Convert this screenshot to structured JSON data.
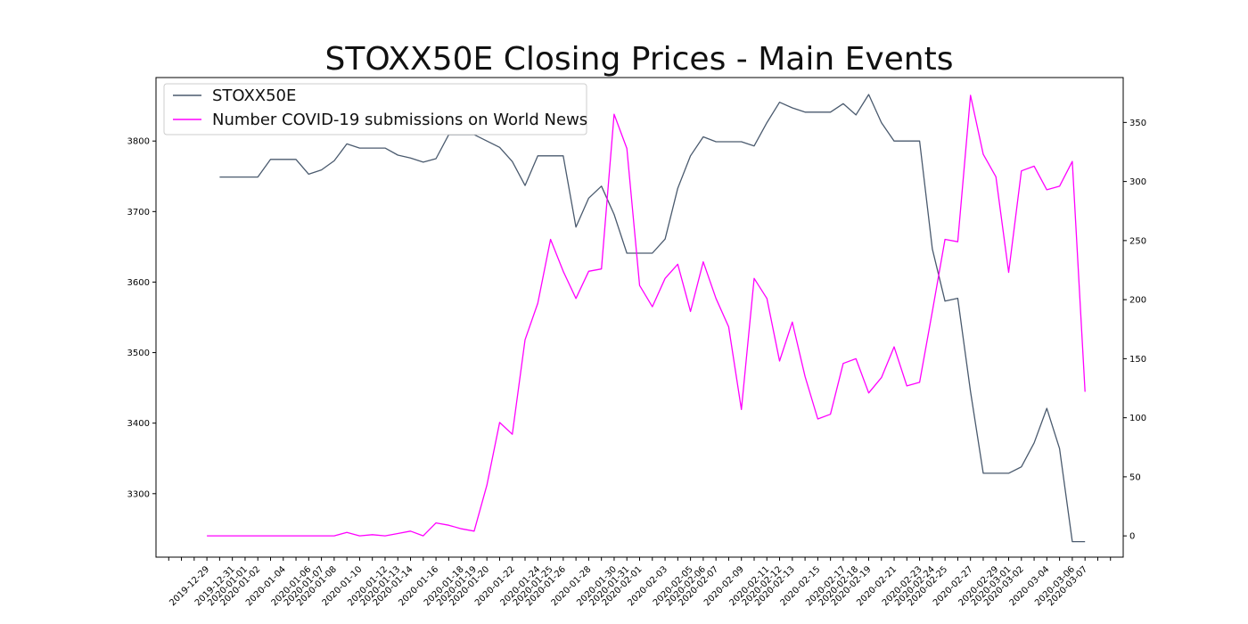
{
  "chart_data": {
    "type": "line",
    "title": "STOXX50E Closing Prices - Main Events",
    "xlabel": "",
    "ylabel": "",
    "y2label": "",
    "legend_position": "top-left",
    "grid": false,
    "x_tick_labels": [
      "2019-12-29",
      "2019-12-31",
      "2020-01-01",
      "2020-01-02",
      "2020-01-04",
      "2020-01-06",
      "2020-01-07",
      "2020-01-08",
      "2020-01-10",
      "2020-01-12",
      "2020-01-13",
      "2020-01-14",
      "2020-01-16",
      "2020-01-18",
      "2020-01-19",
      "2020-01-20",
      "2020-01-22",
      "2020-01-24",
      "2020-01-25",
      "2020-01-26",
      "2020-01-28",
      "2020-01-30",
      "2020-01-31",
      "2020-02-01",
      "2020-02-03",
      "2020-02-05",
      "2020-02-06",
      "2020-02-07",
      "2020-02-09",
      "2020-02-11",
      "2020-02-12",
      "2020-02-13",
      "2020-02-15",
      "2020-02-17",
      "2020-02-18",
      "2020-02-19",
      "2020-02-21",
      "2020-02-23",
      "2020-02-24",
      "2020-02-25",
      "2020-02-27",
      "2020-02-29",
      "2020-03-01",
      "2020-03-02",
      "2020-03-04",
      "2020-03-06",
      "2020-03-07"
    ],
    "x_range": [
      "2019-12-25",
      "2020-03-10"
    ],
    "y_left": {
      "ylim": [
        3210,
        3890
      ],
      "ticks": [
        3300,
        3400,
        3500,
        3600,
        3700,
        3800
      ]
    },
    "y_right": {
      "ylim": [
        -18,
        388
      ],
      "ticks": [
        0,
        50,
        100,
        150,
        200,
        250,
        300,
        350
      ]
    },
    "series": [
      {
        "name": "STOXX50E",
        "axis": "left",
        "color": "#4a5a6e",
        "points": [
          [
            "2019-12-30",
            3749
          ],
          [
            "2019-12-31",
            3749
          ],
          [
            "2020-01-01",
            3749
          ],
          [
            "2020-01-02",
            3749
          ],
          [
            "2020-01-03",
            3774
          ],
          [
            "2020-01-04",
            3774
          ],
          [
            "2020-01-05",
            3774
          ],
          [
            "2020-01-06",
            3753
          ],
          [
            "2020-01-07",
            3759
          ],
          [
            "2020-01-08",
            3772
          ],
          [
            "2020-01-09",
            3796
          ],
          [
            "2020-01-10",
            3790
          ],
          [
            "2020-01-11",
            3790
          ],
          [
            "2020-01-12",
            3790
          ],
          [
            "2020-01-13",
            3780
          ],
          [
            "2020-01-14",
            3776
          ],
          [
            "2020-01-15",
            3770
          ],
          [
            "2020-01-16",
            3775
          ],
          [
            "2020-01-17",
            3809
          ],
          [
            "2020-01-18",
            3809
          ],
          [
            "2020-01-19",
            3809
          ],
          [
            "2020-01-20",
            3800
          ],
          [
            "2020-01-21",
            3791
          ],
          [
            "2020-01-22",
            3771
          ],
          [
            "2020-01-23",
            3737
          ],
          [
            "2020-01-24",
            3779
          ],
          [
            "2020-01-25",
            3779
          ],
          [
            "2020-01-26",
            3779
          ],
          [
            "2020-01-27",
            3678
          ],
          [
            "2020-01-28",
            3719
          ],
          [
            "2020-01-29",
            3736
          ],
          [
            "2020-01-30",
            3696
          ],
          [
            "2020-01-31",
            3641
          ],
          [
            "2020-02-01",
            3641
          ],
          [
            "2020-02-02",
            3641
          ],
          [
            "2020-02-03",
            3661
          ],
          [
            "2020-02-04",
            3733
          ],
          [
            "2020-02-05",
            3779
          ],
          [
            "2020-02-06",
            3806
          ],
          [
            "2020-02-07",
            3799
          ],
          [
            "2020-02-08",
            3799
          ],
          [
            "2020-02-09",
            3799
          ],
          [
            "2020-02-10",
            3793
          ],
          [
            "2020-02-11",
            3826
          ],
          [
            "2020-02-12",
            3855
          ],
          [
            "2020-02-13",
            3847
          ],
          [
            "2020-02-14",
            3841
          ],
          [
            "2020-02-15",
            3841
          ],
          [
            "2020-02-16",
            3841
          ],
          [
            "2020-02-17",
            3853
          ],
          [
            "2020-02-18",
            3837
          ],
          [
            "2020-02-19",
            3866
          ],
          [
            "2020-02-20",
            3826
          ],
          [
            "2020-02-21",
            3800
          ],
          [
            "2020-02-22",
            3800
          ],
          [
            "2020-02-23",
            3800
          ],
          [
            "2020-02-24",
            3647
          ],
          [
            "2020-02-25",
            3573
          ],
          [
            "2020-02-26",
            3577
          ],
          [
            "2020-02-27",
            3445
          ],
          [
            "2020-02-28",
            3329
          ],
          [
            "2020-02-29",
            3329
          ],
          [
            "2020-03-01",
            3329
          ],
          [
            "2020-03-02",
            3338
          ],
          [
            "2020-03-03",
            3372
          ],
          [
            "2020-03-04",
            3421
          ],
          [
            "2020-03-05",
            3364
          ],
          [
            "2020-03-06",
            3232
          ],
          [
            "2020-03-07",
            3232
          ]
        ]
      },
      {
        "name": "Number COVID-19 submissions on World News",
        "axis": "right",
        "color": "#ff00ff",
        "points": [
          [
            "2019-12-29",
            0
          ],
          [
            "2019-12-30",
            0
          ],
          [
            "2019-12-31",
            0
          ],
          [
            "2020-01-01",
            0
          ],
          [
            "2020-01-02",
            0
          ],
          [
            "2020-01-03",
            0
          ],
          [
            "2020-01-04",
            0
          ],
          [
            "2020-01-05",
            0
          ],
          [
            "2020-01-06",
            0
          ],
          [
            "2020-01-07",
            0
          ],
          [
            "2020-01-08",
            0
          ],
          [
            "2020-01-09",
            3
          ],
          [
            "2020-01-10",
            0
          ],
          [
            "2020-01-11",
            1
          ],
          [
            "2020-01-12",
            0
          ],
          [
            "2020-01-13",
            2
          ],
          [
            "2020-01-14",
            4
          ],
          [
            "2020-01-15",
            0
          ],
          [
            "2020-01-16",
            11
          ],
          [
            "2020-01-17",
            9
          ],
          [
            "2020-01-18",
            6
          ],
          [
            "2020-01-19",
            4
          ],
          [
            "2020-01-20",
            43
          ],
          [
            "2020-01-21",
            96
          ],
          [
            "2020-01-22",
            86
          ],
          [
            "2020-01-23",
            166
          ],
          [
            "2020-01-24",
            197
          ],
          [
            "2020-01-25",
            251
          ],
          [
            "2020-01-26",
            224
          ],
          [
            "2020-01-27",
            201
          ],
          [
            "2020-01-28",
            224
          ],
          [
            "2020-01-29",
            226
          ],
          [
            "2020-01-30",
            357
          ],
          [
            "2020-01-31",
            328
          ],
          [
            "2020-02-01",
            212
          ],
          [
            "2020-02-02",
            194
          ],
          [
            "2020-02-03",
            218
          ],
          [
            "2020-02-04",
            230
          ],
          [
            "2020-02-05",
            190
          ],
          [
            "2020-02-06",
            232
          ],
          [
            "2020-02-07",
            201
          ],
          [
            "2020-02-08",
            177
          ],
          [
            "2020-02-09",
            107
          ],
          [
            "2020-02-10",
            218
          ],
          [
            "2020-02-11",
            201
          ],
          [
            "2020-02-12",
            148
          ],
          [
            "2020-02-13",
            181
          ],
          [
            "2020-02-14",
            135
          ],
          [
            "2020-02-15",
            99
          ],
          [
            "2020-02-16",
            103
          ],
          [
            "2020-02-17",
            146
          ],
          [
            "2020-02-18",
            150
          ],
          [
            "2020-02-19",
            121
          ],
          [
            "2020-02-20",
            134
          ],
          [
            "2020-02-21",
            160
          ],
          [
            "2020-02-22",
            127
          ],
          [
            "2020-02-23",
            130
          ],
          [
            "2020-02-24",
            190
          ],
          [
            "2020-02-25",
            251
          ],
          [
            "2020-02-26",
            249
          ],
          [
            "2020-02-27",
            373
          ],
          [
            "2020-02-28",
            323
          ],
          [
            "2020-02-29",
            304
          ],
          [
            "2020-03-01",
            223
          ],
          [
            "2020-03-02",
            309
          ],
          [
            "2020-03-03",
            313
          ],
          [
            "2020-03-04",
            293
          ],
          [
            "2020-03-05",
            296
          ],
          [
            "2020-03-06",
            317
          ],
          [
            "2020-03-07",
            122
          ]
        ]
      }
    ]
  }
}
